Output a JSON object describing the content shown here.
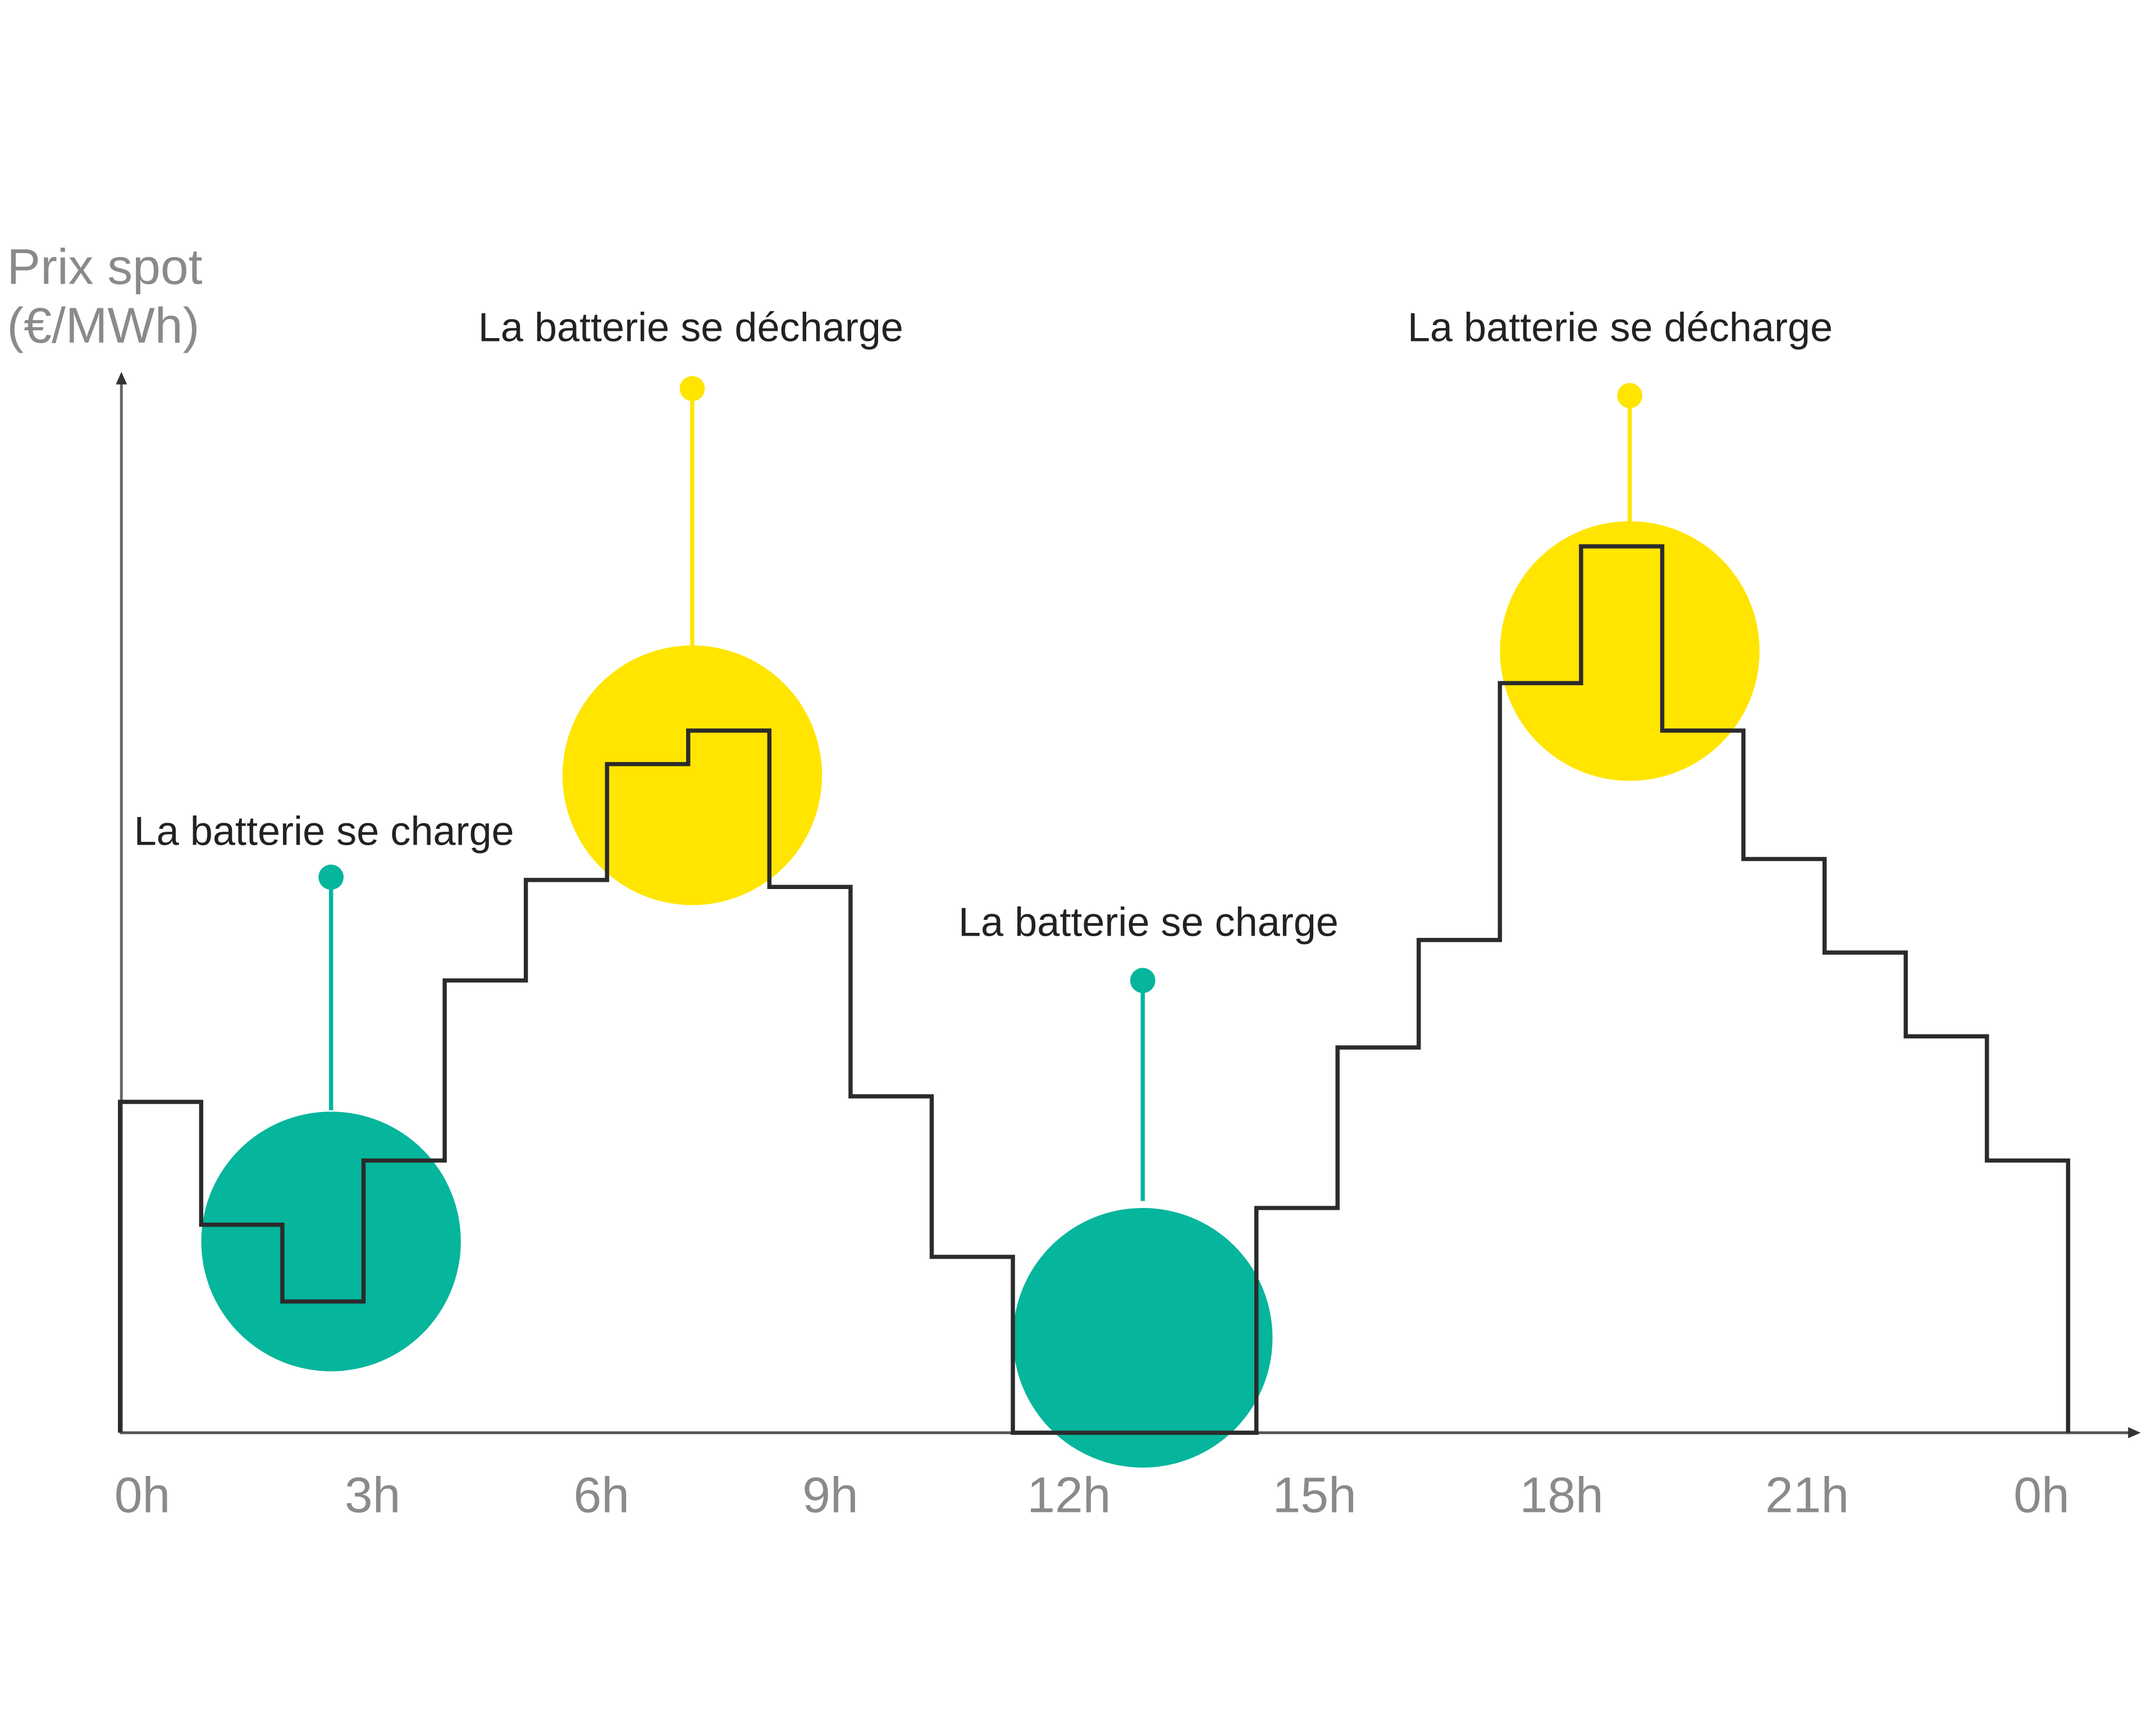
{
  "chart_data": {
    "type": "line",
    "subtype": "step",
    "title": "",
    "ylabel_lines": [
      "Prix spot",
      "(€/MWh)"
    ],
    "xlabel": "",
    "x_tick_labels": [
      "0h",
      "3h",
      "6h",
      "9h",
      "12h",
      "15h",
      "18h",
      "21h",
      "0h"
    ],
    "x_hours": [
      0,
      1,
      2,
      3,
      4,
      5,
      6,
      7,
      8,
      9,
      10,
      11,
      12,
      13,
      14,
      15,
      16,
      17,
      18,
      19,
      20,
      21,
      22,
      23
    ],
    "values": [
      237,
      149,
      94,
      195,
      324,
      396,
      479,
      503,
      391,
      241,
      126,
      0,
      0,
      0,
      161,
      276,
      353,
      537,
      635,
      503,
      411,
      344,
      284,
      195
    ],
    "ylim": [
      0,
      756
    ],
    "xlim": [
      0,
      24
    ],
    "grid": false,
    "annotations": [
      {
        "label": "La batterie se charge",
        "type": "charge",
        "hour": 2.6
      },
      {
        "label": "La batterie se décharge",
        "type": "discharge",
        "hour": 7.05
      },
      {
        "label": "La batterie se charge",
        "type": "charge",
        "hour": 12.6
      },
      {
        "label": "La batterie se décharge",
        "type": "discharge",
        "hour": 18.6
      }
    ],
    "colors": {
      "charge": "#05B59C",
      "discharge": "#FFE500",
      "line": "#2b2b2b",
      "axis": "#555555"
    }
  }
}
